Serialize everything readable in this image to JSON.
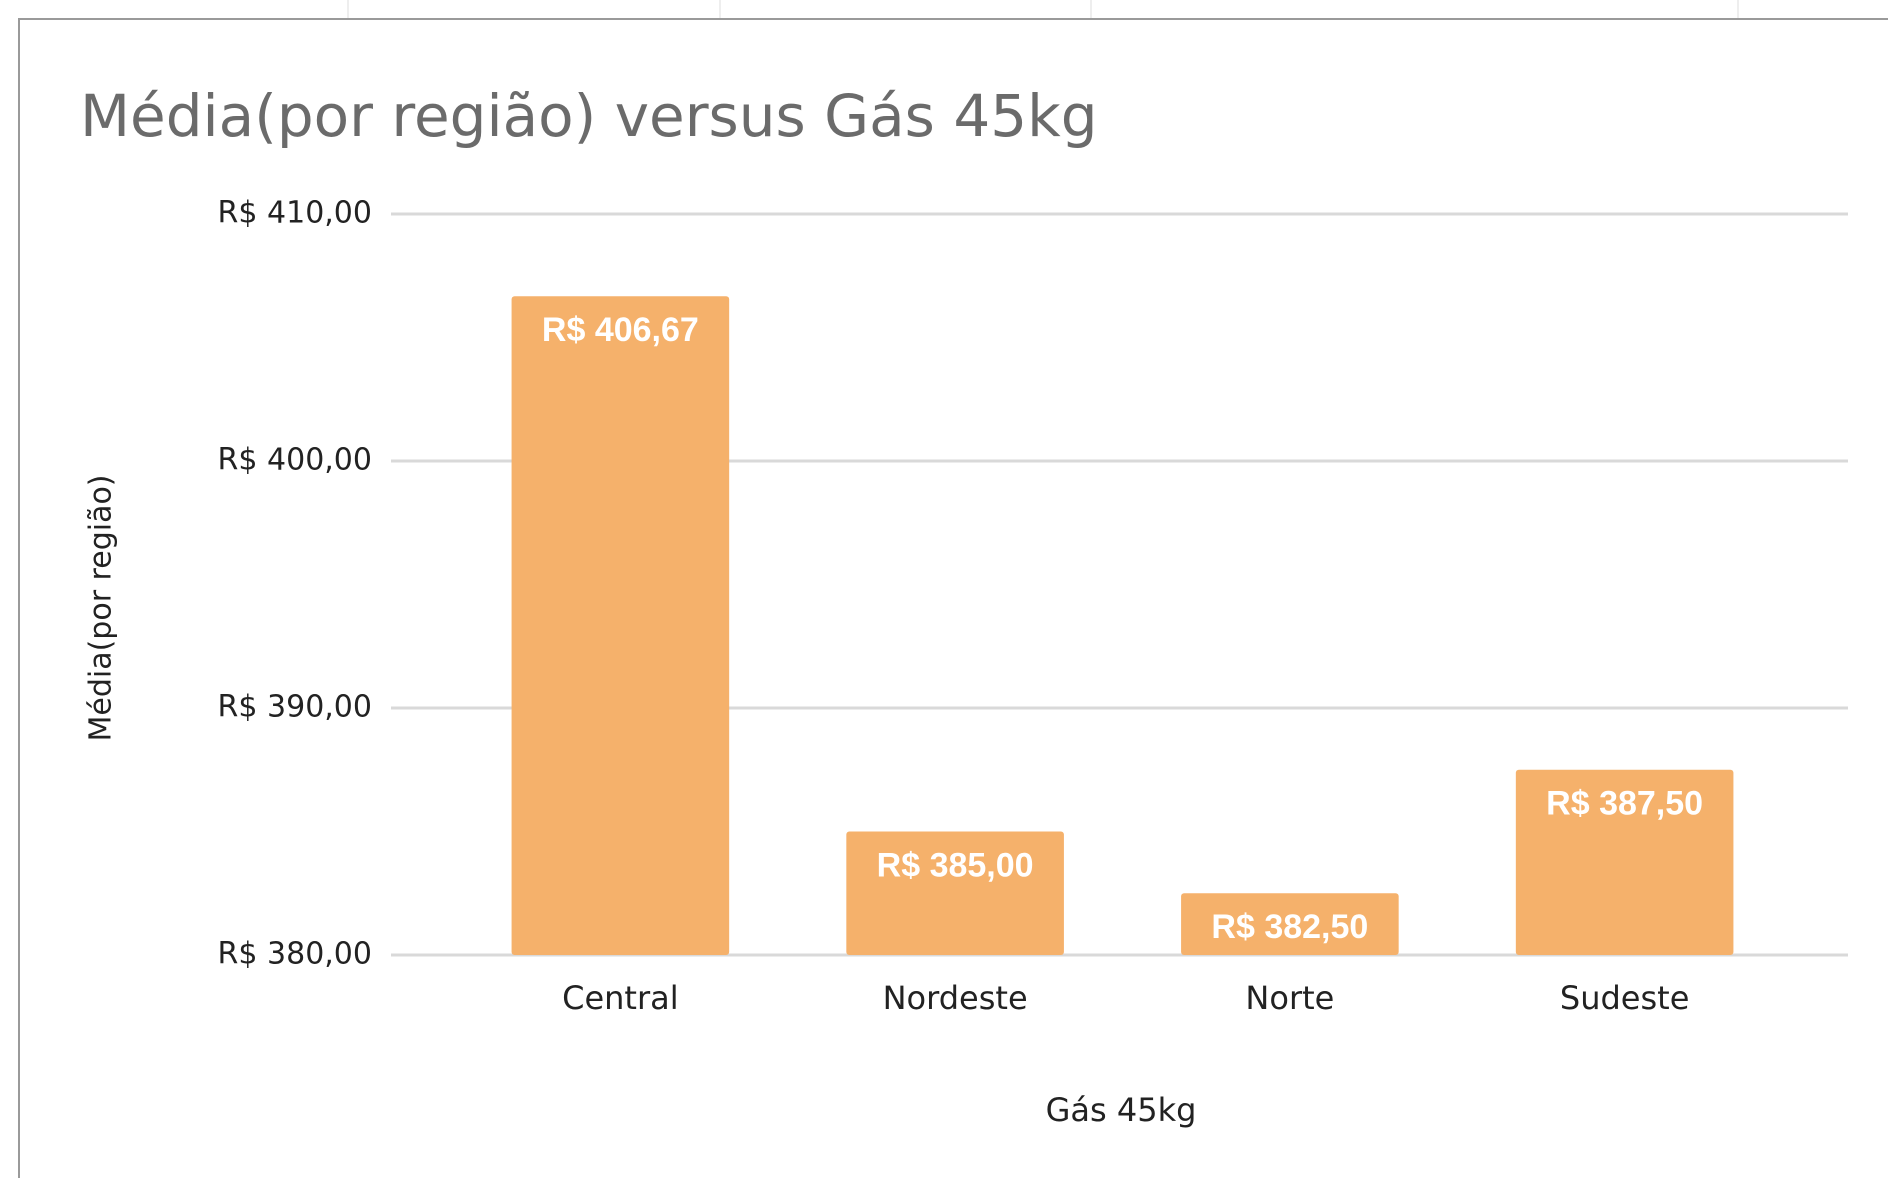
{
  "chart_data": {
    "type": "bar",
    "title": "Média(por região) versus Gás 45kg",
    "x_label": "Gás 45kg",
    "y_label": "Média(por região)",
    "categories": [
      "Central",
      "Nordeste",
      "Norte",
      "Sudeste"
    ],
    "values": [
      406.67,
      385,
      382.5,
      387.5
    ],
    "value_labels": [
      "R$ 406,67",
      "R$ 385,00",
      "R$ 382,50",
      "R$ 387,50"
    ],
    "color": "#f5b16b",
    "ylim": [
      380,
      410
    ],
    "yticks": [
      {
        "value": 380,
        "label": "R$ 380,00"
      },
      {
        "value": 390,
        "label": "R$ 390,00"
      },
      {
        "value": 400,
        "label": "R$ 400,00"
      },
      {
        "value": 410,
        "label": "R$ 410,00"
      }
    ],
    "grid": true
  }
}
